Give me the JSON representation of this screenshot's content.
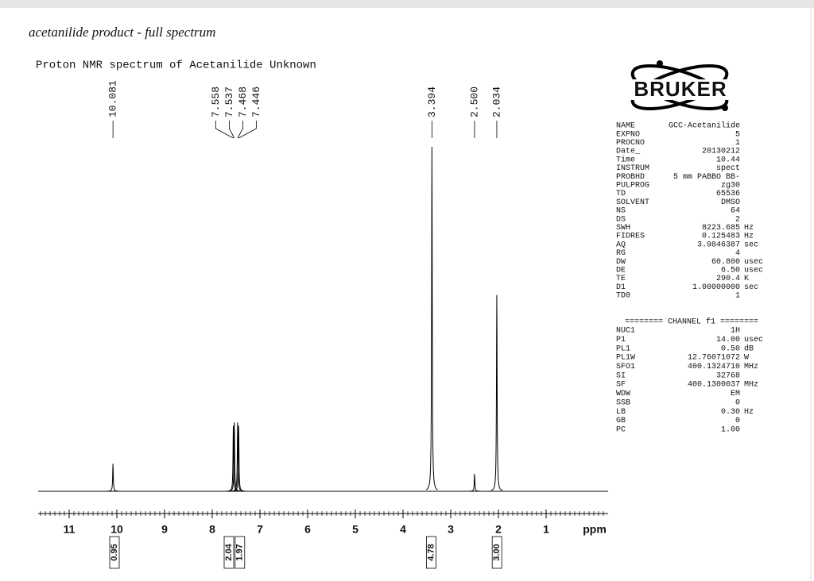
{
  "handwritten_note": "acetanilide product - full spectrum",
  "logo_text": "BRUKER",
  "chart_data": {
    "type": "spectrum",
    "title": "Proton NMR spectrum of Acetanilide Unknown",
    "x_label": "ppm",
    "xlim": [
      11.65,
      -0.3
    ],
    "xticks": [
      11,
      10,
      9,
      8,
      7,
      6,
      5,
      4,
      3,
      2,
      1
    ],
    "minor_tick_step": 0.1,
    "ylim": [
      0,
      100
    ],
    "color": "#000000",
    "peaks": [
      {
        "ppm": 10.081,
        "height": 8
      },
      {
        "ppm": 7.558,
        "height": 19
      },
      {
        "ppm": 7.537,
        "height": 20
      },
      {
        "ppm": 7.468,
        "height": 20
      },
      {
        "ppm": 7.446,
        "height": 19
      },
      {
        "ppm": 3.394,
        "height": 100
      },
      {
        "ppm": 2.5,
        "height": 5
      },
      {
        "ppm": 2.034,
        "height": 57
      }
    ],
    "peak_labels": [
      "10.081",
      "7.558",
      "7.537",
      "7.468",
      "7.446",
      "3.394",
      "2.500",
      "2.034"
    ],
    "integrals": [
      {
        "ppm": 10.05,
        "value": 0.95
      },
      {
        "ppm": 7.65,
        "value": 2.04
      },
      {
        "ppm": 7.42,
        "value": 1.97
      },
      {
        "ppm": 3.41,
        "value": 4.78
      },
      {
        "ppm": 2.03,
        "value": 3,
        "label": "3.00"
      }
    ]
  },
  "params": [
    [
      "NAME",
      "GCC-Acetanilide",
      ""
    ],
    [
      "EXPNO",
      "5",
      ""
    ],
    [
      "PROCNO",
      "1",
      ""
    ],
    [
      "Date_",
      "20130212",
      ""
    ],
    [
      "Time",
      "10.44",
      ""
    ],
    [
      "INSTRUM",
      "spect",
      ""
    ],
    [
      "PROBHD",
      "5 mm PABBO BB-",
      ""
    ],
    [
      "PULPROG",
      "zg30",
      ""
    ],
    [
      "TD",
      "65536",
      ""
    ],
    [
      "SOLVENT",
      "DMSO",
      ""
    ],
    [
      "NS",
      "64",
      ""
    ],
    [
      "DS",
      "2",
      ""
    ],
    [
      "SWH",
      "8223.685",
      "Hz"
    ],
    [
      "FIDRES",
      "0.125483",
      "Hz"
    ],
    [
      "AQ",
      "3.9846387",
      "sec"
    ],
    [
      "RG",
      "4",
      ""
    ],
    [
      "DW",
      "60.800",
      "usec"
    ],
    [
      "DE",
      "6.50",
      "usec"
    ],
    [
      "TE",
      "290.4",
      "K"
    ],
    [
      "D1",
      "1.00000000",
      "sec"
    ],
    [
      "TD0",
      "1",
      ""
    ]
  ],
  "channel_header": "======== CHANNEL f1 ========",
  "channel_params": [
    [
      "NUC1",
      "1H",
      ""
    ],
    [
      "P1",
      "14.00",
      "usec"
    ],
    [
      "PL1",
      "0.50",
      "dB"
    ],
    [
      "PL1W",
      "12.76071072",
      "W"
    ],
    [
      "SFO1",
      "400.1324710",
      "MHz"
    ],
    [
      "SI",
      "32768",
      ""
    ],
    [
      "SF",
      "400.1300037",
      "MHz"
    ],
    [
      "WDW",
      "EM",
      ""
    ],
    [
      "SSB",
      "0",
      ""
    ],
    [
      "LB",
      "0.30",
      "Hz"
    ],
    [
      "GB",
      "0",
      ""
    ],
    [
      "PC",
      "1.00",
      ""
    ]
  ]
}
